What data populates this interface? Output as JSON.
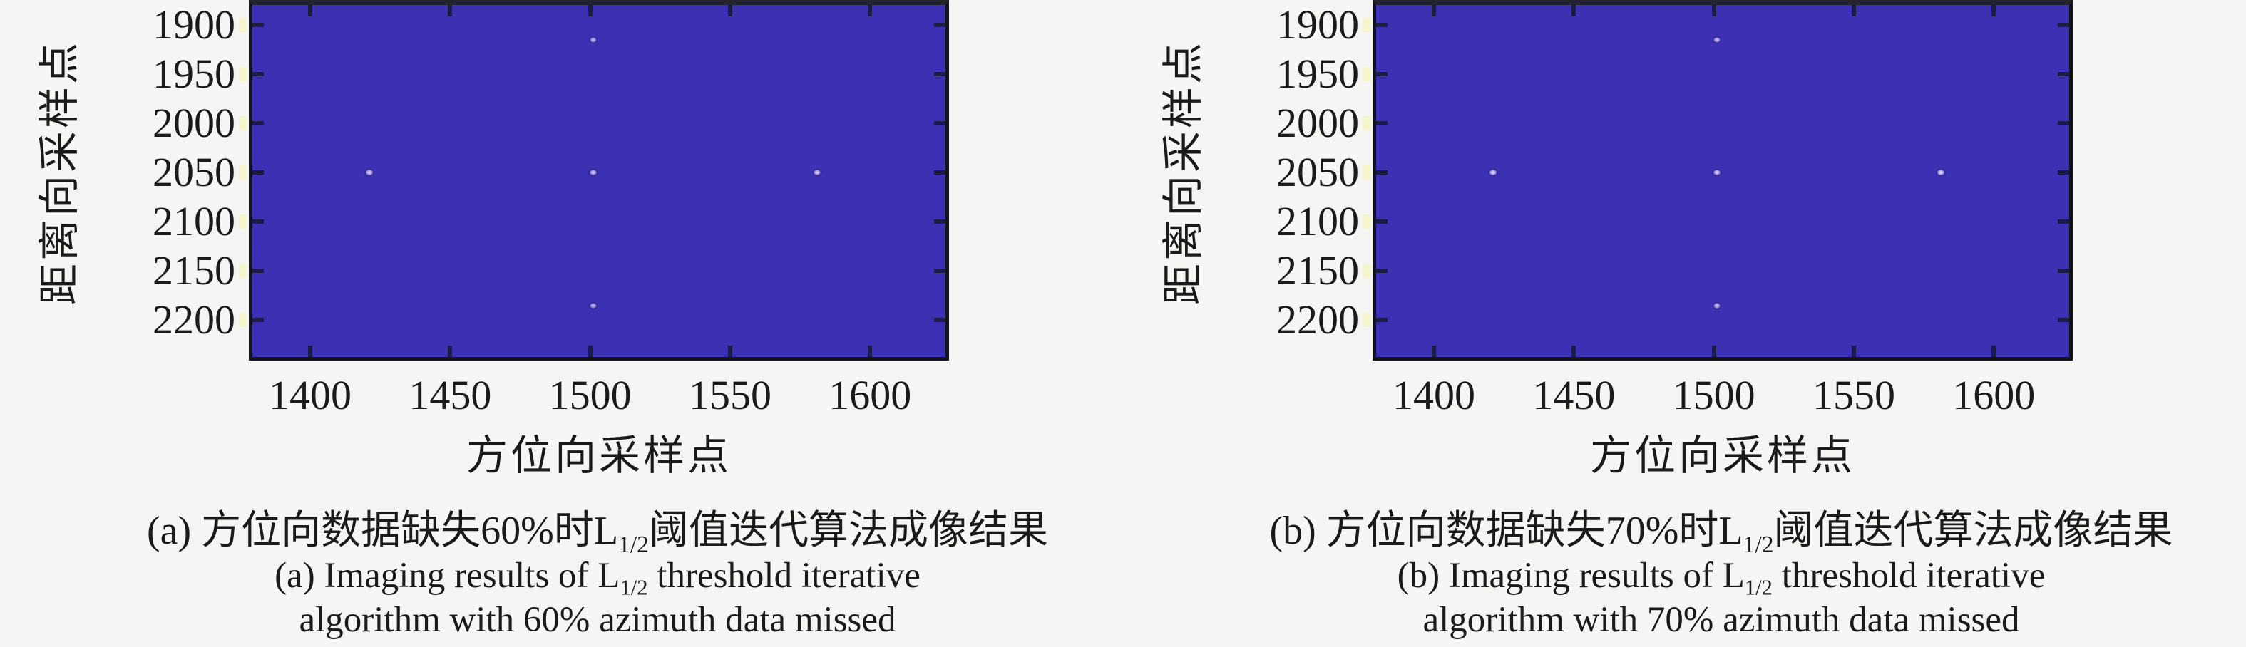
{
  "figure": {
    "background_color": "#f5f5f4",
    "heat_background_color": "#3c31b2",
    "frame_color": "#12121c",
    "tick_color": "#1c1c46",
    "dot_core_color": "#efeaff"
  },
  "subfigures": [
    {
      "id": "a",
      "ylabel": "距离向采样点",
      "xlabel": "方位向采样点",
      "yticks": [
        "1900",
        "1950",
        "2000",
        "2050",
        "2100",
        "2150",
        "2200"
      ],
      "xticks": [
        "1400",
        "1450",
        "1500",
        "1550",
        "1600"
      ],
      "caption": {
        "zh_pre": "(a) 方位向数据缺失60%时L",
        "sub": "1/2",
        "zh_post": "阈值迭代算法成像结果",
        "en1_pre": "(a) Imaging results of L",
        "en1_sub": "1/2",
        "en1_post": " threshold iterative",
        "en2": "algorithm with 60% azimuth data missed"
      }
    },
    {
      "id": "b",
      "ylabel": "距离向采样点",
      "xlabel": "方位向采样点",
      "yticks": [
        "1900",
        "1950",
        "2000",
        "2050",
        "2100",
        "2150",
        "2200"
      ],
      "xticks": [
        "1400",
        "1450",
        "1500",
        "1550",
        "1600"
      ],
      "caption": {
        "zh_pre": "(b) 方位向数据缺失70%时L",
        "sub": "1/2",
        "zh_post": "阈值迭代算法成像结果",
        "en1_pre": "(b) Imaging results of L",
        "en1_sub": "1/2",
        "en1_post": " threshold iterative",
        "en2": "algorithm with 70% azimuth data missed"
      }
    }
  ],
  "chart_data": [
    {
      "type": "heatmap",
      "title": "",
      "xlabel": "方位向采样点",
      "ylabel": "距离向采样点",
      "xticks": [
        1400,
        1450,
        1500,
        1550,
        1600
      ],
      "yticks": [
        1900,
        1950,
        2000,
        2050,
        2100,
        2150,
        2200
      ],
      "xlim": [
        1378,
        1628
      ],
      "ylim_top_to_bottom": [
        1877,
        2240
      ],
      "grid": false,
      "legend": false,
      "background_value_color": "#3c31b2",
      "points": [
        {
          "x": 1420,
          "y": 2050,
          "brightness": 0.95
        },
        {
          "x": 1500,
          "y": 2050,
          "brightness": 0.8
        },
        {
          "x": 1580,
          "y": 2050,
          "brightness": 0.9
        },
        {
          "x": 1500,
          "y": 1915,
          "brightness": 0.6
        },
        {
          "x": 1500,
          "y": 2185,
          "brightness": 0.65
        }
      ],
      "caption_zh": "(a) 方位向数据缺失60%时L1/2阈值迭代算法成像结果",
      "caption_en": "(a) Imaging results of L1/2 threshold iterative algorithm with 60% azimuth data missed"
    },
    {
      "type": "heatmap",
      "title": "",
      "xlabel": "方位向采样点",
      "ylabel": "距离向采样点",
      "xticks": [
        1400,
        1450,
        1500,
        1550,
        1600
      ],
      "yticks": [
        1900,
        1950,
        2000,
        2050,
        2100,
        2150,
        2200
      ],
      "xlim": [
        1378,
        1628
      ],
      "ylim_top_to_bottom": [
        1877,
        2240
      ],
      "grid": false,
      "legend": false,
      "background_value_color": "#3c31b2",
      "points": [
        {
          "x": 1420,
          "y": 2050,
          "brightness": 1.0
        },
        {
          "x": 1500,
          "y": 2050,
          "brightness": 0.9
        },
        {
          "x": 1580,
          "y": 2050,
          "brightness": 1.0
        },
        {
          "x": 1500,
          "y": 1915,
          "brightness": 0.7
        },
        {
          "x": 1500,
          "y": 2185,
          "brightness": 0.75
        }
      ],
      "caption_zh": "(b) 方位向数据缺失70%时L1/2阈值迭代算法成像结果",
      "caption_en": "(b) Imaging results of L1/2 threshold iterative algorithm with 70% azimuth data missed"
    }
  ]
}
